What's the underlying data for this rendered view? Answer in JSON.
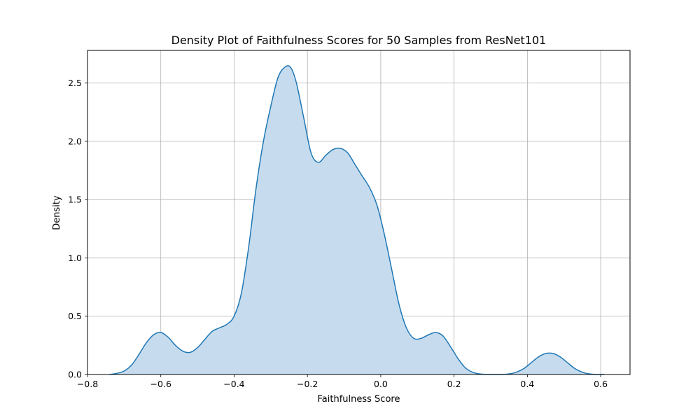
{
  "chart_data": {
    "type": "area",
    "title": "Density Plot of Faithfulness Scores for 50 Samples from ResNet101",
    "xlabel": "Faithfulness Score",
    "ylabel": "Density",
    "xlim": [
      -0.8,
      0.68
    ],
    "ylim": [
      0,
      2.78
    ],
    "xticks": [
      -0.8,
      -0.6,
      -0.4,
      -0.2,
      0.0,
      0.2,
      0.4,
      0.6
    ],
    "xtick_labels": [
      "−0.8",
      "−0.6",
      "−0.4",
      "−0.2",
      "0.0",
      "0.2",
      "0.4",
      "0.6"
    ],
    "yticks": [
      0.0,
      0.5,
      1.0,
      1.5,
      2.0,
      2.5
    ],
    "ytick_labels": [
      "0.0",
      "0.5",
      "1.0",
      "1.5",
      "2.0",
      "2.5"
    ],
    "grid": true,
    "line_color": "#1f77b4",
    "fill_color": "#c6dcee",
    "series": [
      {
        "x": [
          -0.74,
          -0.72,
          -0.7,
          -0.68,
          -0.66,
          -0.64,
          -0.62,
          -0.6,
          -0.58,
          -0.56,
          -0.54,
          -0.52,
          -0.5,
          -0.48,
          -0.46,
          -0.44,
          -0.42,
          -0.4,
          -0.38,
          -0.36,
          -0.34,
          -0.32,
          -0.3,
          -0.28,
          -0.26,
          -0.245,
          -0.23,
          -0.21,
          -0.19,
          -0.17,
          -0.15,
          -0.13,
          -0.11,
          -0.09,
          -0.07,
          -0.05,
          -0.03,
          -0.01,
          0.01,
          0.03,
          0.05,
          0.07,
          0.09,
          0.11,
          0.13,
          0.15,
          0.17,
          0.19,
          0.21,
          0.23,
          0.25,
          0.27,
          0.29,
          0.31,
          0.33,
          0.35,
          0.37,
          0.39,
          0.41,
          0.43,
          0.45,
          0.47,
          0.49,
          0.51,
          0.53,
          0.55,
          0.57,
          0.59,
          0.61
        ],
        "y": [
          0.0,
          0.01,
          0.03,
          0.08,
          0.17,
          0.27,
          0.34,
          0.36,
          0.32,
          0.25,
          0.2,
          0.19,
          0.23,
          0.3,
          0.37,
          0.4,
          0.43,
          0.5,
          0.7,
          1.1,
          1.6,
          2.0,
          2.3,
          2.55,
          2.64,
          2.63,
          2.5,
          2.2,
          1.9,
          1.82,
          1.88,
          1.93,
          1.94,
          1.9,
          1.8,
          1.7,
          1.6,
          1.45,
          1.2,
          0.9,
          0.6,
          0.4,
          0.31,
          0.31,
          0.34,
          0.36,
          0.33,
          0.24,
          0.14,
          0.06,
          0.02,
          0.005,
          0.0,
          0.0,
          0.0,
          0.005,
          0.02,
          0.05,
          0.1,
          0.15,
          0.18,
          0.18,
          0.15,
          0.1,
          0.05,
          0.02,
          0.005,
          0.0,
          0.0
        ]
      }
    ]
  }
}
